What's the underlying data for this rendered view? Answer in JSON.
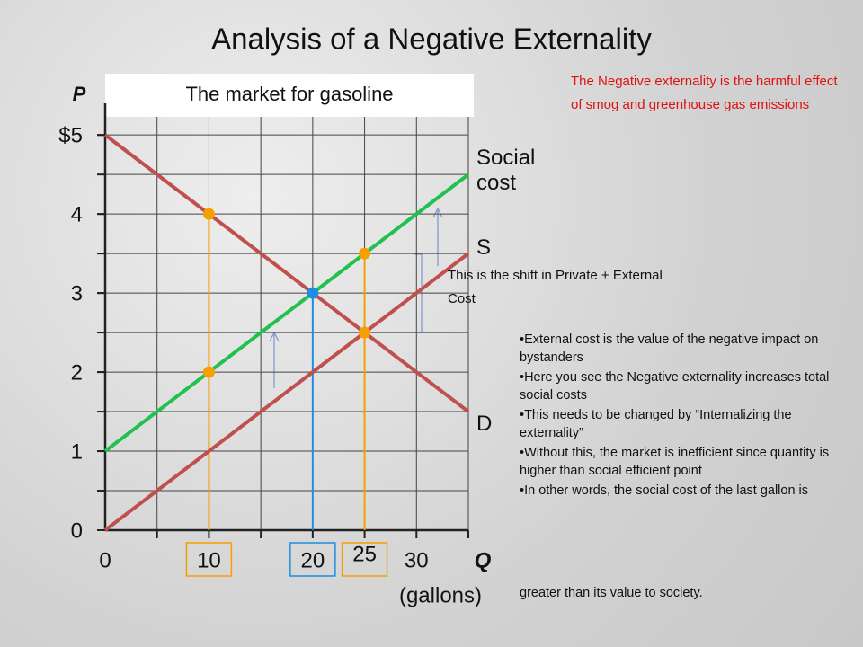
{
  "chart_data": {
    "type": "line",
    "title": "Analysis of a Negative Externality",
    "subtitle": "The market for gasoline",
    "y_label": "P",
    "x_label": "Q",
    "x_unit": "(gallons)",
    "xlim": [
      0,
      35
    ],
    "ylim": [
      0,
      5.4
    ],
    "xticks": [
      0,
      10,
      20,
      25,
      30
    ],
    "yticks": [
      0,
      1,
      2,
      3,
      4,
      {
        "value": 5,
        "label": "$5"
      }
    ],
    "xgrid": [
      5,
      10,
      15,
      20,
      25,
      30,
      35
    ],
    "ygrid": [
      0.5,
      1,
      1.5,
      2,
      2.5,
      3,
      3.5,
      4,
      4.5,
      5
    ],
    "series": [
      {
        "name": "Social cost",
        "color": "#22c04e",
        "x": [
          0,
          35
        ],
        "values": [
          1,
          4.5
        ]
      },
      {
        "name": "S",
        "color": "#c0504d",
        "x": [
          0,
          35
        ],
        "values": [
          0,
          3.5
        ]
      },
      {
        "name": "D",
        "color": "#c0504d",
        "x": [
          0,
          35
        ],
        "values": [
          5,
          1.5
        ]
      }
    ],
    "points": [
      {
        "x": 10,
        "y": 4,
        "color": "#f5a000",
        "drop": true
      },
      {
        "x": 10,
        "y": 2,
        "color": "#f5a000",
        "drop": false
      },
      {
        "x": 20,
        "y": 3,
        "color": "#1f8ee0",
        "drop": true
      },
      {
        "x": 25,
        "y": 3.5,
        "color": "#f5a000",
        "drop": true
      },
      {
        "x": 25,
        "y": 2.5,
        "color": "#f5a000",
        "drop": false
      }
    ],
    "annotations": {
      "note": "The Negative externality is the harmful effect of smog and greenhouse gas emissions",
      "shift": "This is the shift in Private + External Cost",
      "bullets": [
        "External cost is the value of the negative impact on bystanders",
        "Here you see the Negative externality increases total social costs",
        "This needs to be changed by “Internalizing the externality”",
        "Without this, the market is inefficient since quantity is higher than social efficient point",
        "In other words, the social cost of the last gallon is"
      ],
      "continuation": "greater than its value to society."
    }
  }
}
